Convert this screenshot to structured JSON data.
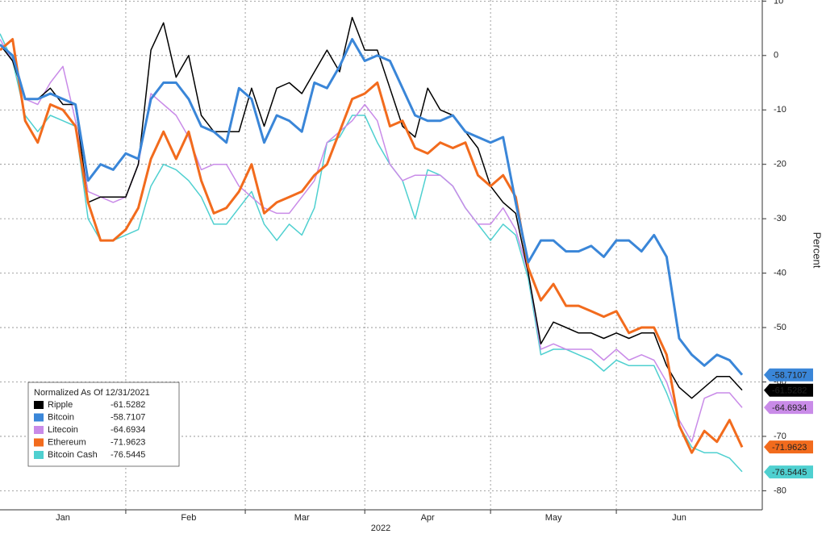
{
  "chart_data": {
    "type": "line",
    "ylabel": "Percent",
    "xlabel": "2022",
    "legend_title": "Normalized As Of 12/31/2021",
    "categories": [
      null,
      null,
      null,
      null,
      null,
      "Jan",
      null,
      null,
      null,
      null,
      null,
      null,
      null,
      null,
      null,
      "Feb",
      null,
      null,
      null,
      null,
      null,
      null,
      null,
      null,
      "Mar",
      null,
      null,
      null,
      null,
      null,
      null,
      null,
      null,
      null,
      "Apr",
      null,
      null,
      null,
      null,
      null,
      null,
      null,
      null,
      null,
      "May",
      null,
      null,
      null,
      null,
      null,
      null,
      null,
      null,
      null,
      "Jun",
      null,
      null,
      null,
      null,
      null
    ],
    "ylim": [
      -83.5,
      10.2
    ],
    "yticks": [
      10,
      0,
      -10,
      -20,
      -30,
      -40,
      -50,
      -60,
      -70,
      -80
    ],
    "grid": true,
    "series": [
      {
        "name": "Ripple",
        "color": "#000000",
        "last_value": -61.5282,
        "values": [
          2,
          -1,
          -8,
          -8,
          -6,
          -9,
          -9,
          -27,
          -26,
          -26,
          -26,
          -20,
          1,
          6,
          -4,
          0,
          -11,
          -14,
          -14,
          -14,
          -6,
          -13,
          -6,
          -5,
          -7,
          -3,
          1,
          -3,
          7,
          1,
          1,
          -6,
          -13,
          -15,
          -6,
          -10,
          -11,
          -14,
          -17,
          -24,
          -27,
          -29,
          -40,
          -53,
          -49,
          -50,
          -51,
          -51,
          -52,
          -51,
          -52,
          -51,
          -51,
          -57,
          -61,
          -63,
          -61,
          -59,
          -59,
          -61.5
        ]
      },
      {
        "name": "Bitcoin",
        "color": "#3a86d8",
        "last_value": -58.7107,
        "values": [
          2,
          0,
          -8,
          -8,
          -7,
          -8,
          -9,
          -23,
          -20,
          -21,
          -18,
          -19,
          -8,
          -5,
          -5,
          -8,
          -13,
          -14,
          -16,
          -6,
          -8,
          -16,
          -11,
          -12,
          -14,
          -5,
          -6,
          -2,
          3,
          -1,
          0,
          -1,
          -6,
          -11,
          -12,
          -12,
          -11,
          -14,
          -15,
          -16,
          -15,
          -27,
          -38,
          -34,
          -34,
          -36,
          -36,
          -35,
          -37,
          -34,
          -34,
          -36,
          -33,
          -37,
          -52,
          -55,
          -57,
          -55,
          -56,
          -58.7
        ]
      },
      {
        "name": "Litecoin",
        "color": "#c98be8",
        "last_value": -64.6934,
        "values": [
          3,
          -1,
          -8,
          -9,
          -5,
          -2,
          -12,
          -25,
          -26,
          -27,
          -26,
          -20,
          -7,
          -9,
          -11,
          -15,
          -21,
          -20,
          -20,
          -24,
          -26,
          -28,
          -29,
          -29,
          -26,
          -23,
          -16,
          -14,
          -12,
          -9,
          -12,
          -20,
          -23,
          -22,
          -22,
          -22,
          -24,
          -28,
          -31,
          -31,
          -28,
          -32,
          -40,
          -54,
          -53,
          -54,
          -54,
          -54,
          -56,
          -54,
          -56,
          -55,
          -56,
          -60,
          -67,
          -71,
          -63,
          -62,
          -62,
          -64.7
        ]
      },
      {
        "name": "Ethereum",
        "color": "#f26b1d",
        "last_value": -71.9623,
        "values": [
          1,
          3,
          -12,
          -16,
          -9,
          -10,
          -13,
          -27,
          -34,
          -34,
          -32,
          -28,
          -19,
          -14,
          -19,
          -14,
          -23,
          -29,
          -28,
          -25,
          -20,
          -29,
          -27,
          -26,
          -25,
          -22,
          -20,
          -14,
          -8,
          -7,
          -5,
          -13,
          -12,
          -17,
          -18,
          -16,
          -17,
          -16,
          -22,
          -24,
          -22,
          -26,
          -39,
          -45,
          -42,
          -46,
          -46,
          -47,
          -48,
          -47,
          -51,
          -50,
          -50,
          -55,
          -68,
          -73,
          -69,
          -71,
          -67,
          -72
        ]
      },
      {
        "name": "Bitcoin Cash",
        "color": "#4fd0d0",
        "last_value": -76.5445,
        "values": [
          4,
          -1,
          -11,
          -14,
          -11,
          -12,
          -13,
          -30,
          -34,
          -34,
          -33,
          -32,
          -24,
          -20,
          -21,
          -23,
          -26,
          -31,
          -31,
          -28,
          -25,
          -31,
          -34,
          -31,
          -33,
          -28,
          -16,
          -15,
          -11,
          -11,
          -16,
          -20,
          -23,
          -30,
          -21,
          -22,
          -24,
          -28,
          -31,
          -34,
          -31,
          -33,
          -41,
          -55,
          -54,
          -54,
          -55,
          -56,
          -58,
          -56,
          -57,
          -57,
          -57,
          -62,
          -68,
          -72,
          -73,
          -73,
          -74,
          -76.5
        ]
      }
    ]
  }
}
